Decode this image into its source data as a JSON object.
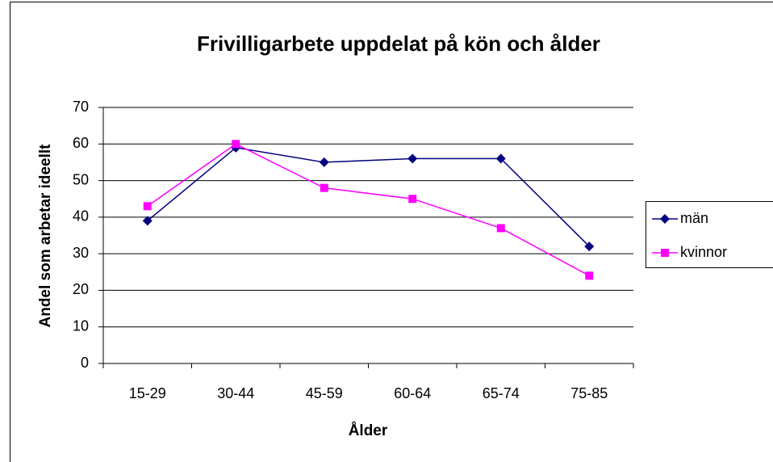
{
  "chart_data": {
    "type": "line",
    "title": "Frivilligarbete uppdelat på kön och ålder",
    "x_label": "Ålder",
    "y_label": "Andel som arbetar ideellt",
    "categories": [
      "15-29",
      "30-44",
      "45-59",
      "60-64",
      "65-74",
      "75-85"
    ],
    "series": [
      {
        "name": "män",
        "color": "#000080",
        "marker": "diamond",
        "values": [
          39,
          59,
          55,
          56,
          56,
          32
        ]
      },
      {
        "name": "kvinnor",
        "color": "#ff00ff",
        "marker": "square",
        "values": [
          43,
          60,
          48,
          45,
          37,
          24
        ]
      }
    ],
    "ylim": [
      0,
      70
    ],
    "yticks": [
      0,
      10,
      20,
      30,
      40,
      50,
      60,
      70
    ],
    "grid": true,
    "legend": "right"
  }
}
